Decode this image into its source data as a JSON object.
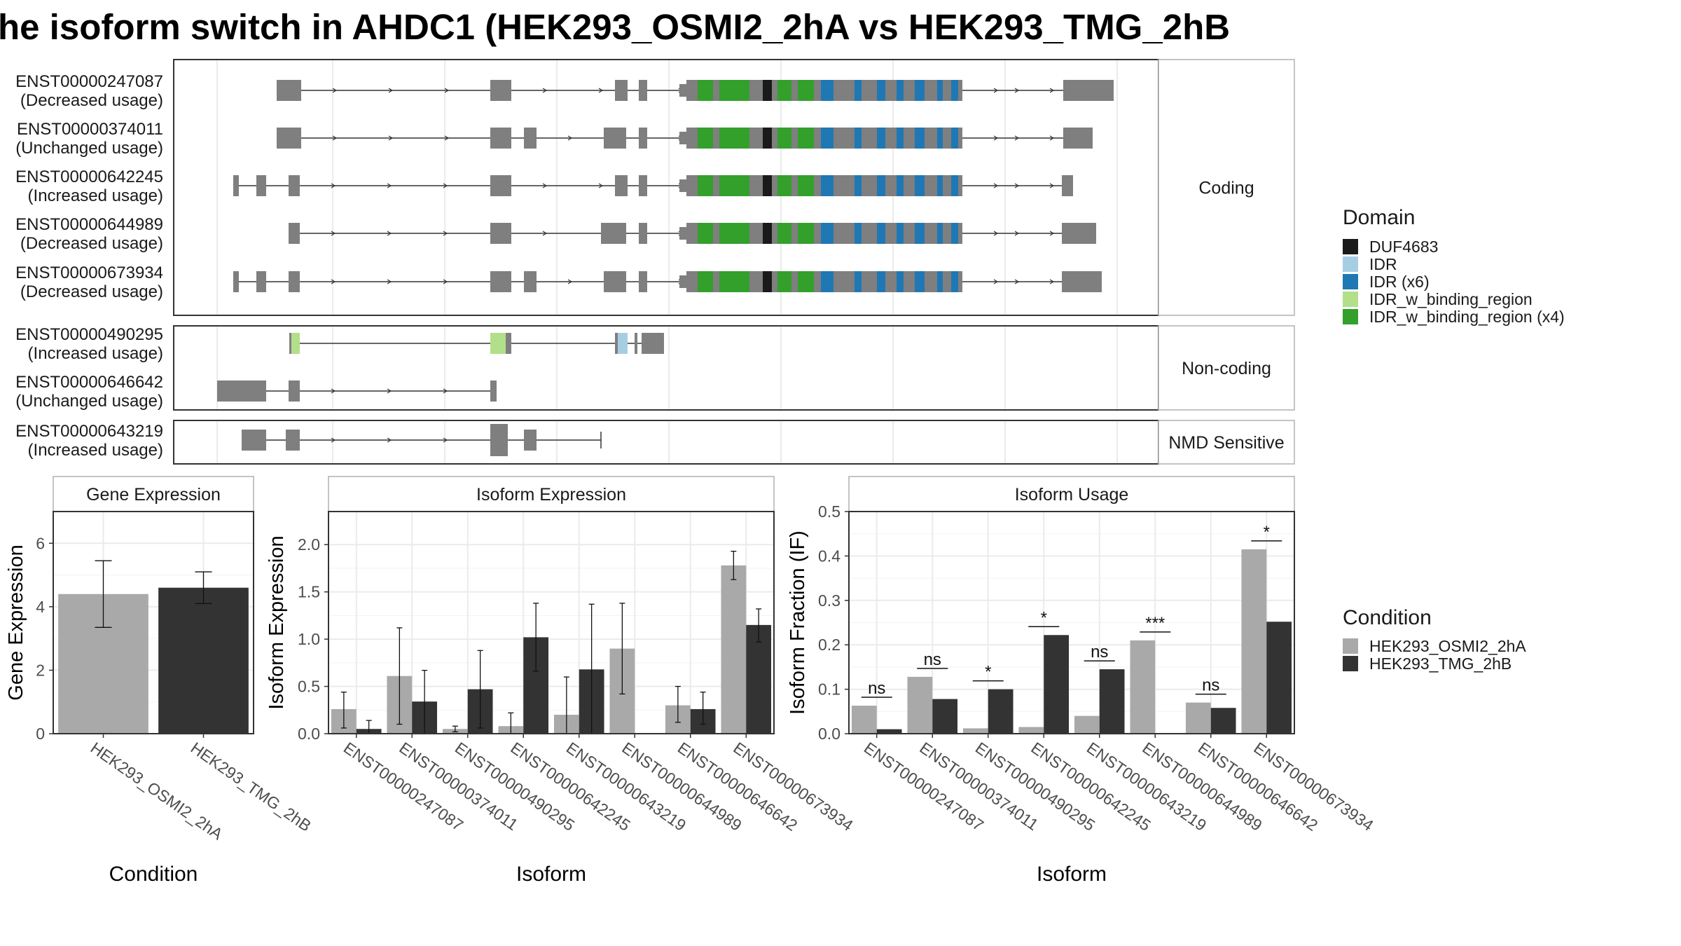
{
  "title": "he isoform switch in AHDC1 (HEK293_OSMI2_2hA vs HEK293_TMG_2hB",
  "structure": {
    "panels": [
      {
        "label": "Coding",
        "isoforms": [
          {
            "id": "ENST00000247087",
            "usage": "(Decreased usage)"
          },
          {
            "id": "ENST00000374011",
            "usage": "(Unchanged usage)"
          },
          {
            "id": "ENST00000642245",
            "usage": "(Increased usage)"
          },
          {
            "id": "ENST00000644989",
            "usage": "(Decreased usage)"
          },
          {
            "id": "ENST00000673934",
            "usage": "(Decreased usage)"
          }
        ]
      },
      {
        "label": "Non-coding",
        "isoforms": [
          {
            "id": "ENST00000490295",
            "usage": "(Increased usage)"
          },
          {
            "id": "ENST00000646642",
            "usage": "(Unchanged usage)"
          }
        ]
      },
      {
        "label": "NMD Sensitive",
        "isoforms": [
          {
            "id": "ENST00000643219",
            "usage": "(Increased usage)"
          }
        ]
      }
    ]
  },
  "legend_domain": {
    "title": "Domain",
    "items": [
      {
        "label": "DUF4683",
        "color": "#1a1a1a"
      },
      {
        "label": "IDR",
        "color": "#a6cee3"
      },
      {
        "label": "IDR (x6)",
        "color": "#1f78b4"
      },
      {
        "label": "IDR_w_binding_region",
        "color": "#b2df8a"
      },
      {
        "label": "IDR_w_binding_region (x4)",
        "color": "#33a02c"
      }
    ]
  },
  "legend_condition": {
    "title": "Condition",
    "items": [
      {
        "label": "HEK293_OSMI2_2hA",
        "color": "#a9a9a9"
      },
      {
        "label": "HEK293_TMG_2hB",
        "color": "#333333"
      }
    ]
  },
  "chart_data": [
    {
      "type": "bar",
      "title": "Gene Expression",
      "xlabel": "Condition",
      "ylabel": "Gene Expression",
      "ylim": [
        0,
        7
      ],
      "yticks": [
        "0",
        "2",
        "4",
        "6"
      ],
      "categories": [
        "HEK293_OSMI2_2hA",
        "HEK293_TMG_2hB"
      ],
      "values": [
        4.4,
        4.6
      ],
      "error": [
        [
          3.35,
          5.45
        ],
        [
          4.1,
          5.1
        ]
      ],
      "colors": [
        "#a9a9a9",
        "#333333"
      ],
      "grid": true
    },
    {
      "type": "bar",
      "title": "Isoform Expression",
      "xlabel": "Isoform",
      "ylabel": "Isoform Expression",
      "ylim": [
        0,
        2.35
      ],
      "yticks": [
        "0.0",
        "0.5",
        "1.0",
        "1.5",
        "2.0"
      ],
      "categories": [
        "ENST00000247087",
        "ENST00000374011",
        "ENST00000490295",
        "ENST00000642245",
        "ENST00000643219",
        "ENST00000644989",
        "ENST00000646642",
        "ENST00000673934"
      ],
      "series": [
        {
          "name": "HEK293_OSMI2_2hA",
          "values": [
            0.26,
            0.61,
            0.05,
            0.08,
            0.2,
            0.9,
            0.3,
            1.78
          ],
          "error": [
            [
              0.06,
              0.44
            ],
            [
              0.1,
              1.12
            ],
            [
              0.02,
              0.08
            ],
            [
              0.0,
              0.22
            ],
            [
              0.0,
              0.6
            ],
            [
              0.42,
              1.38
            ],
            [
              0.12,
              0.5
            ],
            [
              1.63,
              1.93
            ]
          ]
        },
        {
          "name": "HEK293_TMG_2hB",
          "values": [
            0.05,
            0.34,
            0.47,
            1.02,
            0.68,
            0.0,
            0.26,
            1.15
          ],
          "error": [
            [
              0.0,
              0.14
            ],
            [
              0.0,
              0.67
            ],
            [
              0.06,
              0.88
            ],
            [
              0.66,
              1.38
            ],
            [
              0.0,
              1.37
            ],
            [
              0.0,
              0.0
            ],
            [
              0.1,
              0.44
            ],
            [
              0.97,
              1.32
            ]
          ]
        }
      ],
      "grid": true
    },
    {
      "type": "bar",
      "title": "Isoform Usage",
      "xlabel": "Isoform",
      "ylabel": "Isoform Fraction (IF)",
      "ylim": [
        0,
        0.5
      ],
      "yticks": [
        "0.0",
        "0.1",
        "0.2",
        "0.3",
        "0.4",
        "0.5"
      ],
      "categories": [
        "ENST00000247087",
        "ENST00000374011",
        "ENST00000490295",
        "ENST00000642245",
        "ENST00000643219",
        "ENST00000644989",
        "ENST00000646642",
        "ENST00000673934"
      ],
      "series": [
        {
          "name": "HEK293_OSMI2_2hA",
          "values": [
            0.063,
            0.128,
            0.012,
            0.015,
            0.04,
            0.21,
            0.07,
            0.415
          ]
        },
        {
          "name": "HEK293_TMG_2hB",
          "values": [
            0.01,
            0.078,
            0.1,
            0.222,
            0.145,
            0.0,
            0.058,
            0.252
          ]
        }
      ],
      "significance": [
        "ns",
        "ns",
        "*",
        "*",
        "ns",
        "***",
        "ns",
        "*"
      ],
      "grid": true
    }
  ]
}
